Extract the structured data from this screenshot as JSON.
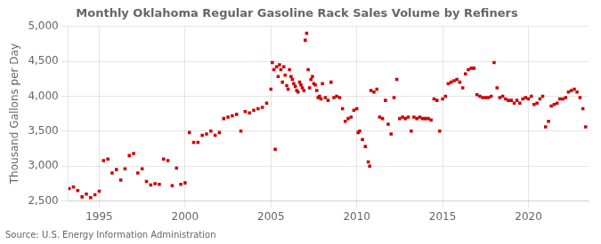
{
  "chart_data": {
    "type": "scatter",
    "title": "Monthly Oklahoma Regular Gasoline Rack Sales Volume by Refiners",
    "ylabel": "Thousand Gallons per Day",
    "annotations": [
      "Source: U.S. Energy Information Administration"
    ],
    "color": "#cc0000",
    "marker": "square",
    "grid": true,
    "xlim": [
      1993.2,
      2023.5
    ],
    "xticks": [
      1995,
      2000,
      2005,
      2010,
      2015,
      2020
    ],
    "ylim": [
      2500,
      5000
    ],
    "yticks": [
      {
        "value": 2500,
        "label": "2,500"
      },
      {
        "value": 3000,
        "label": "3,000"
      },
      {
        "value": 3500,
        "label": "3,500"
      },
      {
        "value": 4000,
        "label": "4,000"
      },
      {
        "value": 4500,
        "label": "4,500"
      },
      {
        "value": 5000,
        "label": "5,000"
      }
    ],
    "x": [
      1993.25,
      1993.5,
      1993.75,
      1994.0,
      1994.25,
      1994.5,
      1994.75,
      1995.0,
      1995.25,
      1995.5,
      1995.75,
      1996.0,
      1996.25,
      1996.5,
      1996.75,
      1997.0,
      1997.25,
      1997.5,
      1997.75,
      1998.0,
      1998.25,
      1998.5,
      1998.75,
      1999.0,
      1999.25,
      1999.5,
      1999.75,
      2000.0,
      2000.25,
      2000.5,
      2000.75,
      2001.0,
      2001.25,
      2001.5,
      2001.75,
      2002.0,
      2002.25,
      2002.5,
      2002.75,
      2003.0,
      2003.25,
      2003.5,
      2003.75,
      2004.0,
      2004.25,
      2004.5,
      2004.75,
      2005.0,
      2005.08,
      2005.17,
      2005.25,
      2005.33,
      2005.42,
      2005.5,
      2005.58,
      2005.67,
      2005.75,
      2005.83,
      2005.92,
      2006.0,
      2006.08,
      2006.17,
      2006.25,
      2006.33,
      2006.42,
      2006.5,
      2006.58,
      2006.67,
      2006.75,
      2006.83,
      2006.92,
      2007.0,
      2007.08,
      2007.17,
      2007.25,
      2007.33,
      2007.42,
      2007.5,
      2007.58,
      2007.67,
      2007.75,
      2007.83,
      2007.92,
      2008.0,
      2008.17,
      2008.33,
      2008.5,
      2008.67,
      2008.83,
      2009.0,
      2009.17,
      2009.33,
      2009.5,
      2009.67,
      2009.83,
      2010.0,
      2010.08,
      2010.17,
      2010.33,
      2010.5,
      2010.67,
      2010.75,
      2010.83,
      2011.0,
      2011.17,
      2011.33,
      2011.5,
      2011.67,
      2011.83,
      2012.0,
      2012.17,
      2012.33,
      2012.5,
      2012.67,
      2012.83,
      2013.0,
      2013.17,
      2013.33,
      2013.5,
      2013.67,
      2013.83,
      2014.0,
      2014.17,
      2014.33,
      2014.5,
      2014.67,
      2014.83,
      2015.0,
      2015.17,
      2015.33,
      2015.5,
      2015.67,
      2015.83,
      2016.0,
      2016.17,
      2016.33,
      2016.5,
      2016.67,
      2016.83,
      2017.0,
      2017.17,
      2017.33,
      2017.5,
      2017.67,
      2017.83,
      2018.0,
      2018.17,
      2018.33,
      2018.5,
      2018.67,
      2018.83,
      2019.0,
      2019.17,
      2019.33,
      2019.5,
      2019.67,
      2019.83,
      2020.0,
      2020.17,
      2020.33,
      2020.5,
      2020.67,
      2020.83,
      2021.0,
      2021.17,
      2021.33,
      2021.5,
      2021.67,
      2021.83,
      2022.0,
      2022.17,
      2022.33,
      2022.5,
      2022.67,
      2022.83,
      2023.0,
      2023.17,
      2023.33
    ],
    "values": [
      2680,
      2700,
      2650,
      2560,
      2600,
      2550,
      2590,
      2640,
      3080,
      3100,
      2900,
      2950,
      2800,
      2960,
      3150,
      3180,
      2900,
      2960,
      2780,
      2730,
      2750,
      2740,
      3100,
      3080,
      2720,
      2970,
      2740,
      2760,
      3480,
      3340,
      3340,
      3440,
      3460,
      3500,
      3440,
      3480,
      3680,
      3700,
      3720,
      3740,
      3500,
      3780,
      3760,
      3800,
      3820,
      3840,
      3900,
      4100,
      4480,
      4380,
      3240,
      4420,
      4280,
      4450,
      4380,
      4200,
      4420,
      4300,
      4150,
      4100,
      4380,
      4280,
      4240,
      4180,
      4140,
      4080,
      4060,
      4200,
      4160,
      4120,
      4080,
      4800,
      4900,
      4380,
      4120,
      4240,
      4280,
      4180,
      4160,
      4080,
      3980,
      4000,
      3960,
      4180,
      3980,
      3940,
      4200,
      3980,
      4000,
      3980,
      3820,
      3640,
      3680,
      3700,
      3800,
      3820,
      3480,
      3500,
      3380,
      3280,
      3060,
      3000,
      4080,
      4060,
      4100,
      3700,
      3680,
      3940,
      3600,
      3460,
      3980,
      4240,
      3680,
      3700,
      3680,
      3700,
      3500,
      3700,
      3680,
      3700,
      3680,
      3680,
      3680,
      3660,
      3960,
      3940,
      3500,
      3960,
      4000,
      4180,
      4200,
      4220,
      4240,
      4200,
      4120,
      4320,
      4380,
      4400,
      4400,
      4020,
      4000,
      3980,
      3980,
      3980,
      4000,
      4480,
      4120,
      3980,
      4000,
      3960,
      3940,
      3940,
      3900,
      3940,
      3900,
      3960,
      3980,
      3960,
      4000,
      3880,
      3900,
      3960,
      4000,
      3560,
      3640,
      3860,
      3880,
      3900,
      3960,
      3960,
      3980,
      4060,
      4080,
      4100,
      4060,
      3980,
      3820,
      3560
    ]
  }
}
